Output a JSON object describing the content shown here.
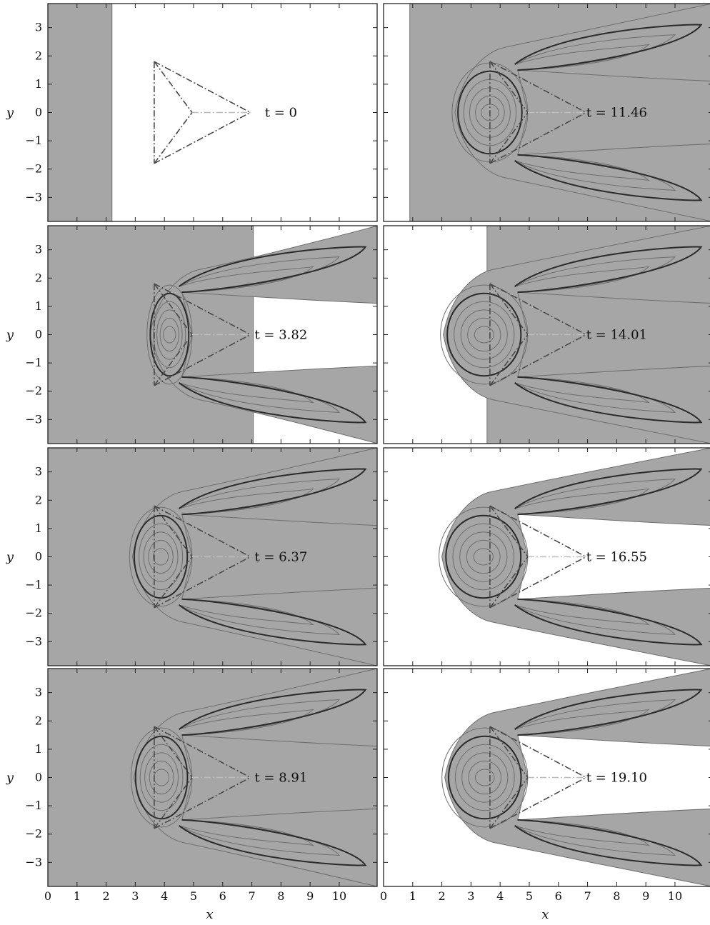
{
  "chart_data": {
    "type": "contour",
    "xlabel": "x",
    "ylabel": "y",
    "xlim": [
      0,
      11.3
    ],
    "ylim": [
      -3.85,
      3.85
    ],
    "x_ticks": [
      0,
      1,
      2,
      3,
      4,
      5,
      6,
      7,
      8,
      9,
      10
    ],
    "y_ticks": [
      3,
      2,
      1,
      0,
      -1,
      -2,
      -3
    ],
    "x_tick_labels": [
      "0",
      "1",
      "2",
      "3",
      "4",
      "5",
      "6",
      "7",
      "8",
      "9",
      "10"
    ],
    "y_tick_labels": [
      "3",
      "2",
      "1",
      "0",
      "−1",
      "−2",
      "−3"
    ],
    "layout": {
      "rows": 4,
      "cols": 2
    },
    "colors": {
      "filled_region": "#a6a6a6",
      "empty_region": "#ffffff",
      "contour_thin": "#6e6e6e",
      "contour_thick": "#2b2b2b",
      "obstacle_outline": "#4a4a4a",
      "centerline": "#bcbcbc"
    },
    "obstacle": {
      "outer_vertices": [
        [
          3.65,
          1.8
        ],
        [
          6.95,
          0
        ],
        [
          3.65,
          -1.8
        ]
      ],
      "inner_vertex": [
        4.95,
        0
      ],
      "centerline": [
        [
          4.95,
          0
        ],
        [
          6.95,
          0
        ]
      ]
    },
    "panels": [
      {
        "time_text": "t = 0",
        "t": 0,
        "band": [
          0,
          2.2
        ],
        "front": [
          null,
          null
        ]
      },
      {
        "time_text": "t = 11.46",
        "t": 11.46,
        "band": [
          0.9,
          11.3
        ],
        "front": [
          2.45,
          0.62
        ]
      },
      {
        "time_text": "t = 3.82",
        "t": 3.82,
        "band": [
          0,
          7.05
        ],
        "front": [
          3.5,
          0.6
        ]
      },
      {
        "time_text": "t = 14.01",
        "t": 14.01,
        "band": [
          3.55,
          11.3
        ],
        "front": [
          2.05,
          0.85
        ]
      },
      {
        "time_text": "t = 6.37",
        "t": 6.37,
        "band": [
          0,
          11.3
        ],
        "front": [
          2.9,
          0.55
        ]
      },
      {
        "time_text": "t = 16.55",
        "t": 16.55,
        "band": [
          null,
          null
        ],
        "front": [
          2.0,
          0.9
        ]
      },
      {
        "time_text": "t = 8.91",
        "t": 8.91,
        "band": [
          0,
          11.3
        ],
        "front": [
          2.95,
          0.62
        ]
      },
      {
        "time_text": "t = 19.10",
        "t": 19.1,
        "band": [
          null,
          null
        ],
        "front": [
          2.1,
          0.85
        ]
      }
    ]
  }
}
